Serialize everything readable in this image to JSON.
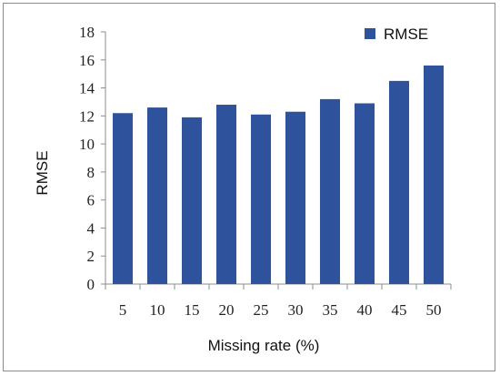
{
  "chart_data": {
    "type": "bar",
    "categories": [
      "5",
      "10",
      "15",
      "20",
      "25",
      "30",
      "35",
      "40",
      "45",
      "50"
    ],
    "series": [
      {
        "name": "RMSE",
        "values": [
          12.2,
          12.6,
          11.9,
          12.8,
          12.1,
          12.3,
          13.2,
          12.9,
          14.5,
          15.6
        ]
      }
    ],
    "xlabel": "Missing rate (%)",
    "ylabel": "RMSE",
    "ylim": [
      0,
      18
    ],
    "yticks": [
      "0",
      "2",
      "4",
      "6",
      "8",
      "10",
      "12",
      "14",
      "16",
      "18"
    ],
    "grid": false,
    "legend_position": "top-right",
    "colors": {
      "bar": "#2e529b"
    }
  }
}
